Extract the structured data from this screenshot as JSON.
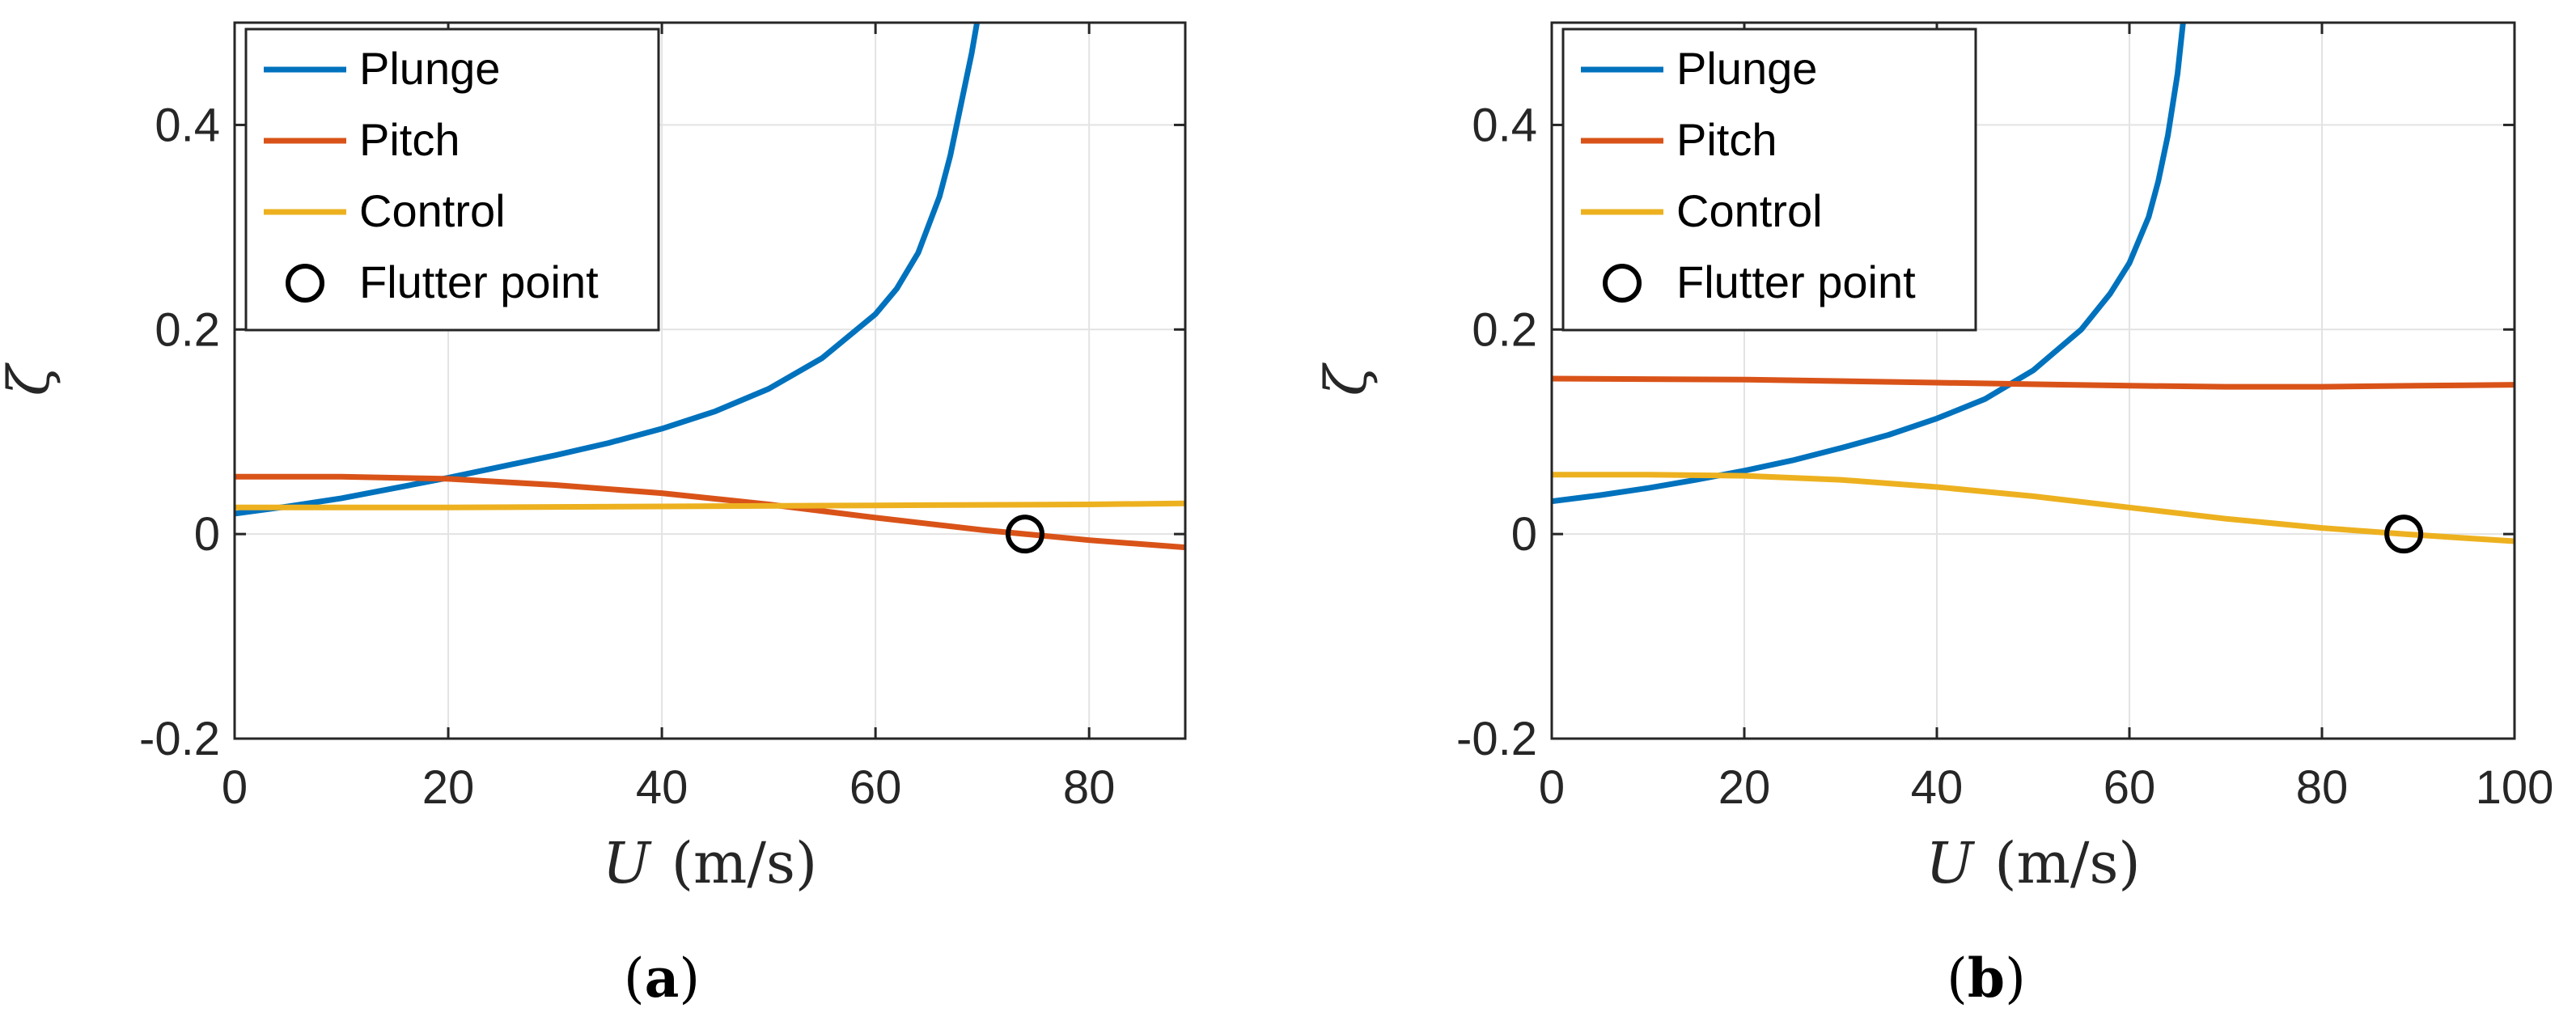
{
  "chart_data": [
    {
      "type": "line",
      "panel": "a",
      "caption_letter": "a",
      "xlabel_var": "U",
      "xlabel_unit": "(m/s)",
      "ylabel": "ζ",
      "xlim": [
        0,
        89
      ],
      "ylim": [
        -0.2,
        0.5
      ],
      "grid": true,
      "legend_placement": "top-left",
      "x_ticks": [
        0,
        20,
        40,
        60,
        80
      ],
      "x_tick_labels": [
        "0",
        "20",
        "40",
        "60",
        "80"
      ],
      "y_ticks": [
        -0.2,
        0,
        0.2,
        0.4
      ],
      "y_tick_labels": [
        "-0.2",
        "0",
        "0.2",
        "0.4"
      ],
      "legend": [
        "Plunge",
        "Pitch",
        "Control",
        "Flutter point"
      ],
      "series": [
        {
          "name": "Plunge",
          "color": "#0072BD",
          "x": [
            0,
            5,
            10,
            15,
            20,
            25,
            30,
            35,
            40,
            45,
            50,
            55,
            60,
            62,
            64,
            66,
            67,
            68,
            69,
            69.5,
            69.8
          ],
          "y": [
            0.02,
            0.027,
            0.035,
            0.045,
            0.055,
            0.066,
            0.077,
            0.089,
            0.103,
            0.12,
            0.142,
            0.172,
            0.215,
            0.24,
            0.275,
            0.33,
            0.37,
            0.42,
            0.47,
            0.5,
            0.52
          ]
        },
        {
          "name": "Pitch",
          "color": "#D95319",
          "x": [
            0,
            10,
            20,
            30,
            40,
            50,
            60,
            70,
            74,
            80,
            89
          ],
          "y": [
            0.056,
            0.056,
            0.054,
            0.048,
            0.04,
            0.029,
            0.016,
            0.004,
            0.0,
            -0.006,
            -0.013
          ]
        },
        {
          "name": "Control",
          "color": "#EDB120",
          "x": [
            0,
            20,
            40,
            60,
            80,
            89
          ],
          "y": [
            0.026,
            0.026,
            0.027,
            0.028,
            0.029,
            0.03
          ]
        }
      ],
      "flutter_point": {
        "x": 74,
        "y": 0.0
      }
    },
    {
      "type": "line",
      "panel": "b",
      "caption_letter": "b",
      "xlabel_var": "U",
      "xlabel_unit": "(m/s)",
      "ylabel": "ζ",
      "xlim": [
        0,
        100
      ],
      "ylim": [
        -0.2,
        0.5
      ],
      "grid": true,
      "legend_placement": "top-left",
      "x_ticks": [
        0,
        20,
        40,
        60,
        80,
        100
      ],
      "x_tick_labels": [
        "0",
        "20",
        "40",
        "60",
        "80",
        "100"
      ],
      "y_ticks": [
        -0.2,
        0,
        0.2,
        0.4
      ],
      "y_tick_labels": [
        "-0.2",
        "0",
        "0.2",
        "0.4"
      ],
      "legend": [
        "Plunge",
        "Pitch",
        "Control",
        "Flutter point"
      ],
      "series": [
        {
          "name": "Plunge",
          "color": "#0072BD",
          "x": [
            0,
            5,
            10,
            15,
            20,
            25,
            30,
            35,
            40,
            45,
            50,
            55,
            58,
            60,
            62,
            63,
            64,
            65,
            65.8
          ],
          "y": [
            0.032,
            0.038,
            0.045,
            0.053,
            0.062,
            0.072,
            0.084,
            0.097,
            0.113,
            0.132,
            0.16,
            0.2,
            0.235,
            0.265,
            0.31,
            0.345,
            0.39,
            0.45,
            0.52
          ]
        },
        {
          "name": "Pitch",
          "color": "#D95319",
          "x": [
            0,
            20,
            40,
            60,
            70,
            80,
            90,
            100
          ],
          "y": [
            0.152,
            0.151,
            0.148,
            0.145,
            0.144,
            0.144,
            0.145,
            0.146
          ]
        },
        {
          "name": "Control",
          "color": "#EDB120",
          "x": [
            0,
            10,
            20,
            30,
            40,
            50,
            60,
            70,
            80,
            88.5,
            95,
            100
          ],
          "y": [
            0.058,
            0.058,
            0.057,
            0.053,
            0.046,
            0.037,
            0.026,
            0.015,
            0.006,
            0.0,
            -0.004,
            -0.007
          ]
        }
      ],
      "flutter_point": {
        "x": 88.5,
        "y": 0.0
      }
    }
  ]
}
